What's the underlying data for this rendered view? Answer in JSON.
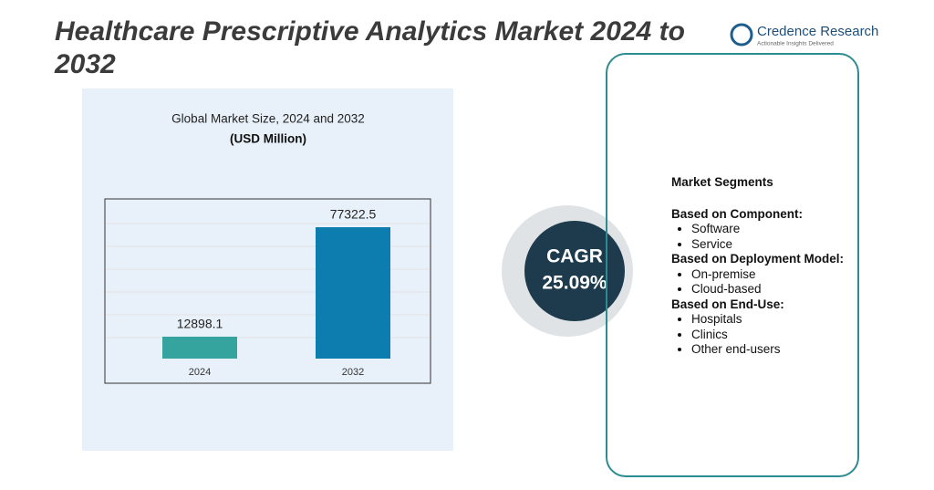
{
  "header": {
    "title": "Healthcare Prescriptive Analytics Market 2024 to 2032",
    "logo_name": "Credence Research",
    "logo_tagline": "Actionable Insights Delivered"
  },
  "chart_data": {
    "type": "bar",
    "title": "Global Market Size, 2024 and 2032",
    "subtitle": "(USD Million)",
    "categories": [
      "2024",
      "2032"
    ],
    "series": [
      {
        "values": [
          12898.1,
          77322.5
        ],
        "colors": [
          "#35a39e",
          "#0d7db0"
        ]
      }
    ]
  },
  "cagr": {
    "label": "CAGR",
    "value": "25.09%"
  },
  "segments": {
    "title": "Market Segments",
    "groups": [
      {
        "heading": "Based on Component:",
        "items": [
          "Software",
          "Service"
        ]
      },
      {
        "heading": "Based on Deployment Model:",
        "items": [
          "On-premise",
          "Cloud-based"
        ]
      },
      {
        "heading": "Based on End-Use:",
        "items": [
          "Hospitals",
          "Clinics",
          "Other end-users"
        ]
      }
    ]
  }
}
